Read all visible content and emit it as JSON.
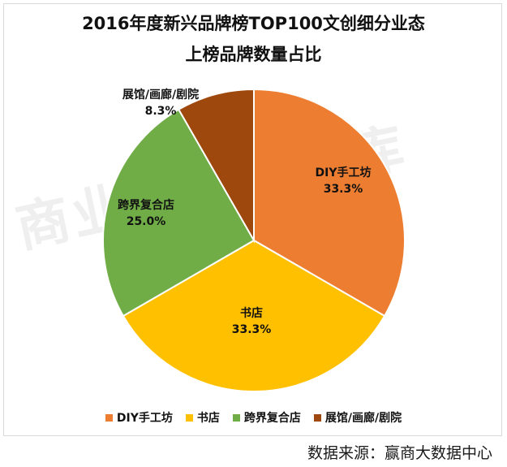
{
  "chart_data": {
    "type": "pie",
    "title": "2016年度新兴品牌榜TOP100文创细分业态",
    "subtitle": "上榜品牌数量占比",
    "slices": [
      {
        "label": "DIY手工坊",
        "value": 33.3,
        "value_label": "33.3%",
        "color": "#ed7d31"
      },
      {
        "label": "书店",
        "value": 33.3,
        "value_label": "33.3%",
        "color": "#ffc000"
      },
      {
        "label": "跨界复合店",
        "value": 25.0,
        "value_label": "25.0%",
        "color": "#70ad47"
      },
      {
        "label": "展馆/画廊/剧院",
        "value": 8.3,
        "value_label": "8.3%",
        "color": "#9e480e"
      }
    ],
    "legend_position": "bottom",
    "start_angle": "12 o'clock, clockwise"
  },
  "watermark": "商业地产云智库",
  "source_text": "数据来源：赢商大数据中心"
}
